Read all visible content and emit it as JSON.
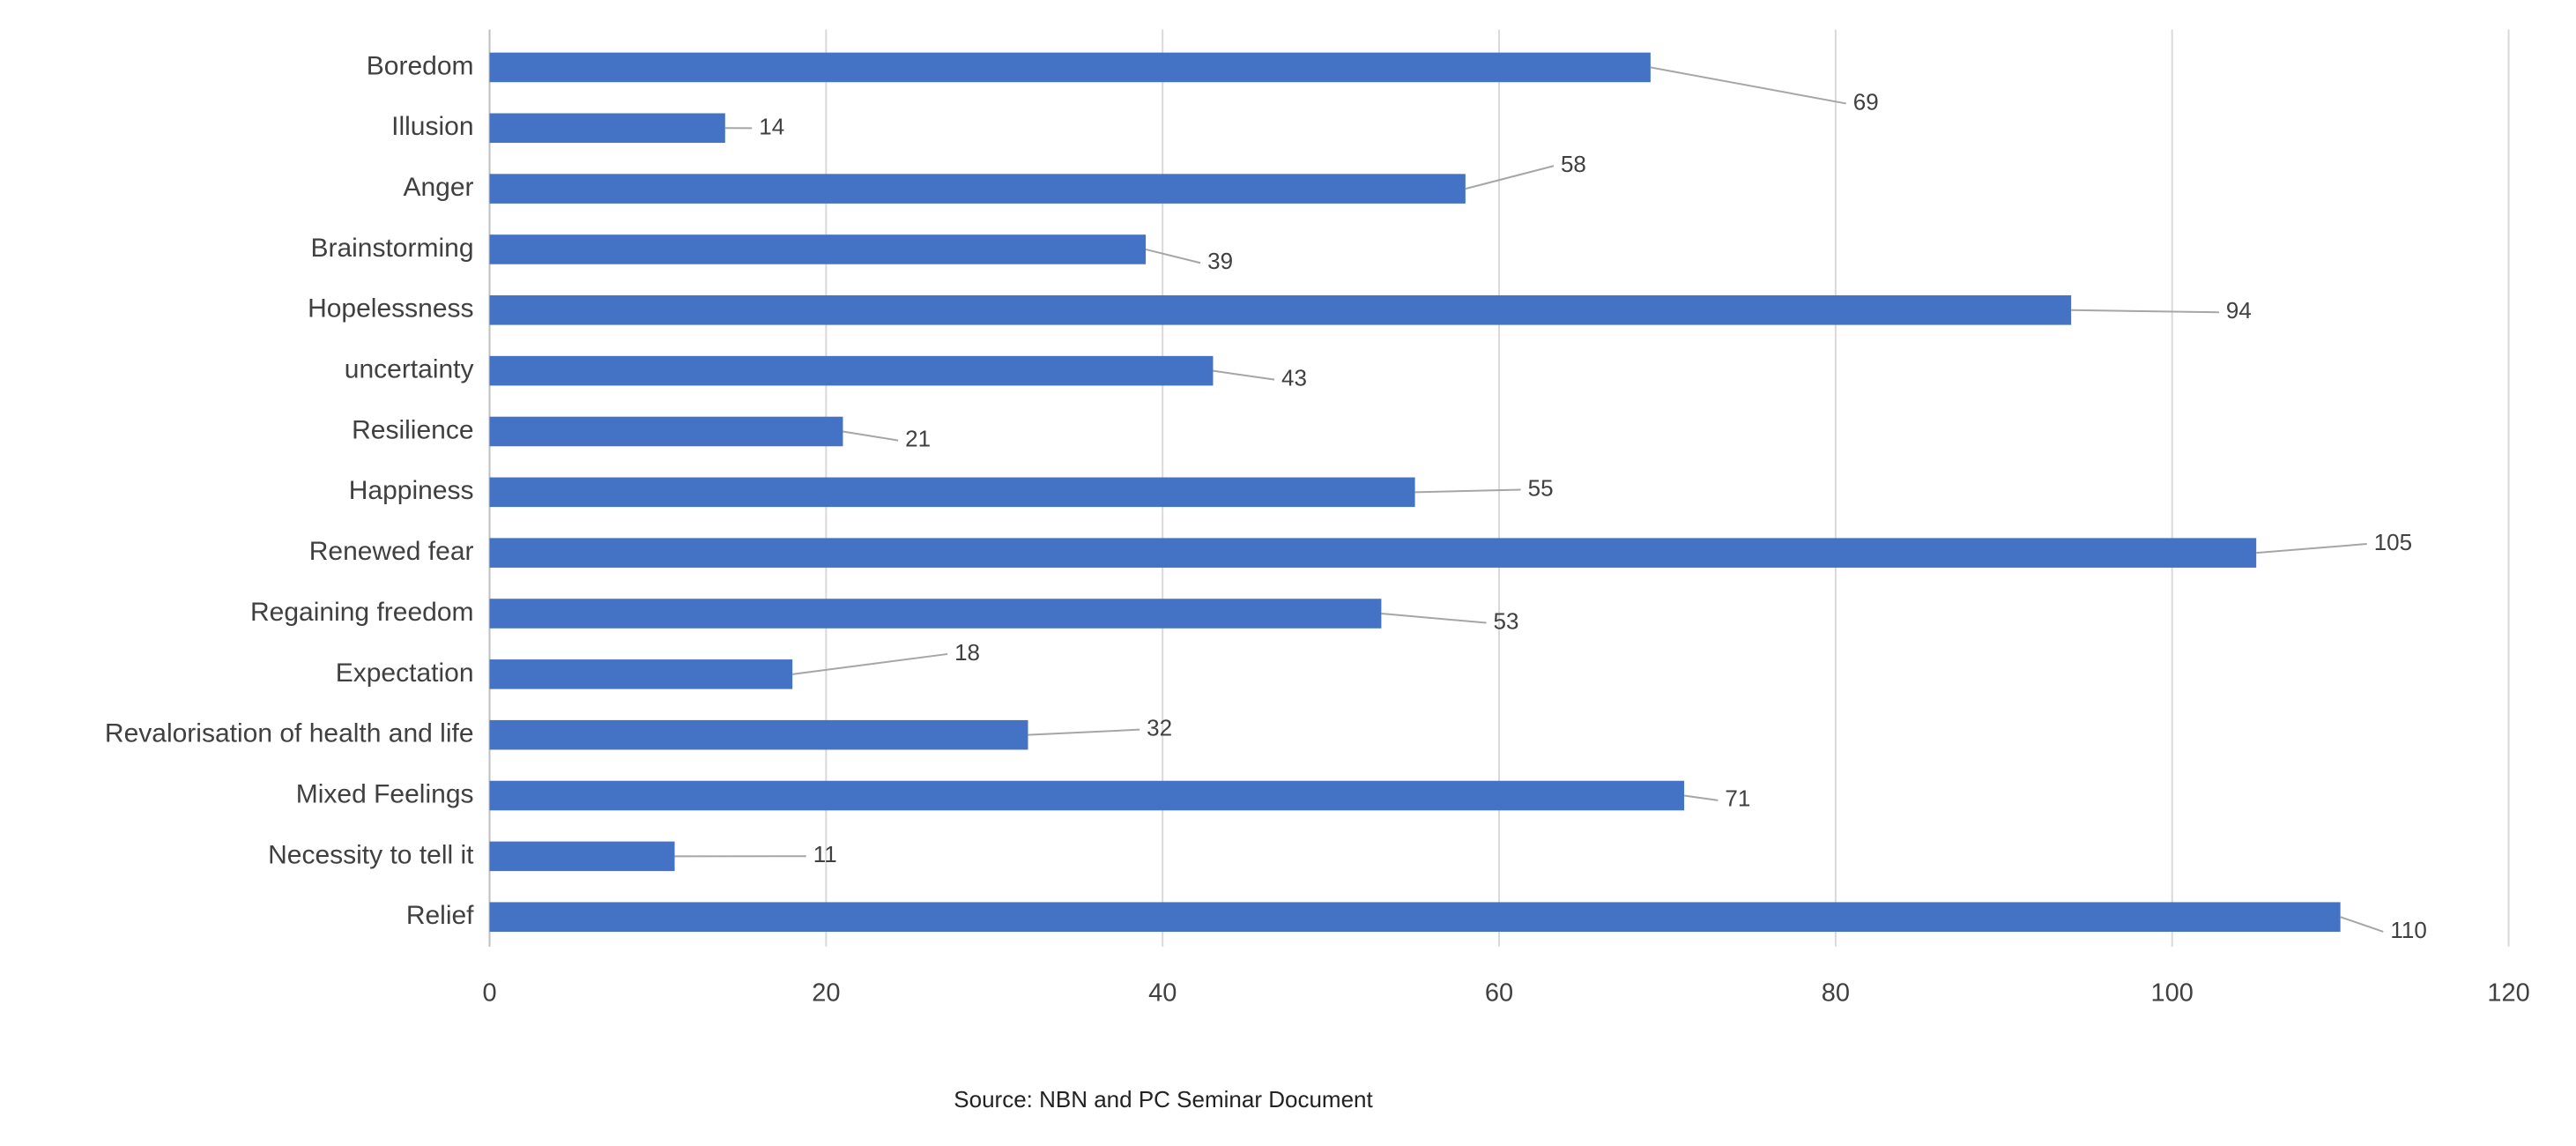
{
  "chart_data": {
    "type": "bar",
    "orientation": "horizontal",
    "categories": [
      "Boredom",
      "Illusion",
      "Anger",
      "Brainstorming",
      "Hopelessness",
      "uncertainty",
      "Resilience",
      "Happiness",
      "Renewed fear",
      "Regaining freedom",
      "Expectation",
      "Revalorisation of health and life",
      "Mixed Feelings",
      "Necessity to tell it",
      "Relief"
    ],
    "values": [
      69,
      14,
      58,
      39,
      94,
      43,
      21,
      55,
      105,
      53,
      18,
      32,
      71,
      11,
      110
    ],
    "color": "#4472c4",
    "xlim": [
      0,
      120
    ],
    "xticks": [
      0,
      20,
      40,
      60,
      80,
      100,
      120
    ],
    "grid": true,
    "source": "Source: NBN and PC Seminar Document"
  }
}
